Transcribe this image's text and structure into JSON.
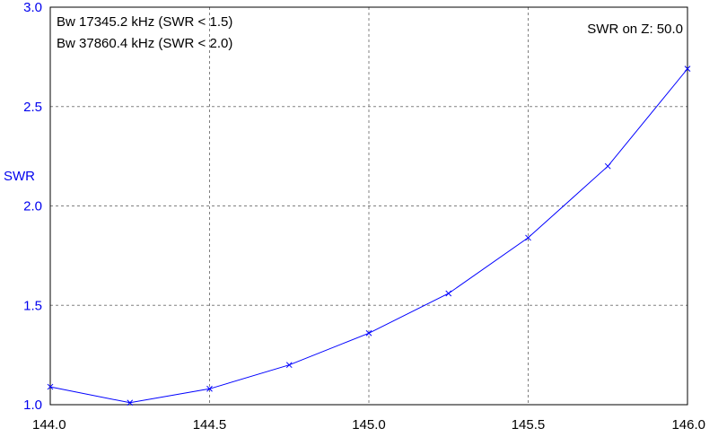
{
  "chart_data": {
    "type": "line",
    "title": "",
    "xlabel": "",
    "ylabel": "SWR",
    "xlim": [
      144.0,
      146.0
    ],
    "ylim": [
      1.0,
      3.0
    ],
    "grid": true,
    "x_ticks": [
      "144.0",
      "144.5",
      "145.0",
      "145.5",
      "146.0"
    ],
    "y_ticks": [
      "1.0",
      "1.5",
      "2.0",
      "2.5",
      "3.0"
    ],
    "series": [
      {
        "color": "#0000ff",
        "x": [
          144.0,
          144.25,
          144.5,
          144.75,
          145.0,
          145.25,
          145.5,
          145.75,
          146.0
        ],
        "y": [
          1.09,
          1.01,
          1.08,
          1.2,
          1.36,
          1.56,
          1.84,
          2.2,
          2.69
        ]
      }
    ],
    "annotations": {
      "bw1": "Bw 17345.2 kHz (SWR < 1.5)",
      "bw2": "Bw 37860.4 kHz (SWR < 2.0)",
      "ref": "SWR on Z: 50.0"
    },
    "colors": {
      "axis_text_y": "#0000ee",
      "axis_text_x": "#000000",
      "grid": "#808080",
      "line": "#0000ff"
    }
  }
}
